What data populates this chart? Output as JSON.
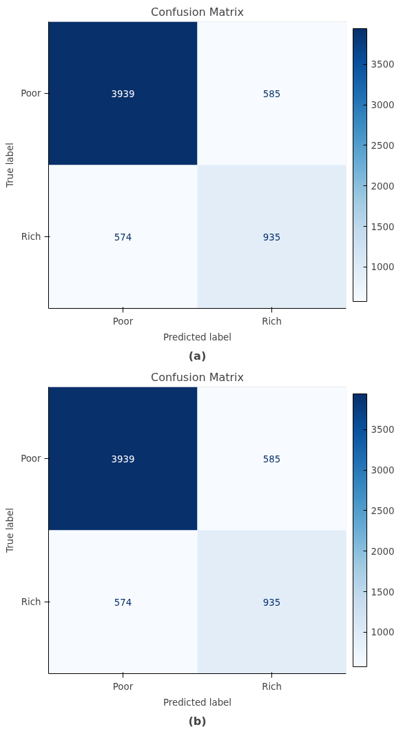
{
  "chart_data": [
    {
      "type": "heatmap",
      "title": "Confusion Matrix",
      "xlabel": "Predicted label",
      "ylabel": "True label",
      "categories": [
        "Poor",
        "Rich"
      ],
      "y_categories": [
        "Poor",
        "Rich"
      ],
      "cells": [
        [
          3939,
          585
        ],
        [
          574,
          935
        ]
      ],
      "clim": [
        574,
        3939
      ],
      "cticks": [
        1000,
        1500,
        2000,
        2500,
        3000,
        3500
      ],
      "data_labels": true,
      "annotations": [
        "(a)"
      ]
    },
    {
      "type": "heatmap",
      "title": "Confusion Matrix",
      "xlabel": "Predicted label",
      "ylabel": "True label",
      "categories": [
        "Poor",
        "Rich"
      ],
      "y_categories": [
        "Poor",
        "Rich"
      ],
      "cells": [
        [
          3939,
          585
        ],
        [
          574,
          935
        ]
      ],
      "clim": [
        574,
        3939
      ],
      "cticks": [
        1000,
        1500,
        2000,
        2500,
        3000,
        3500
      ],
      "data_labels": true,
      "annotations": [
        "(b)"
      ]
    }
  ]
}
